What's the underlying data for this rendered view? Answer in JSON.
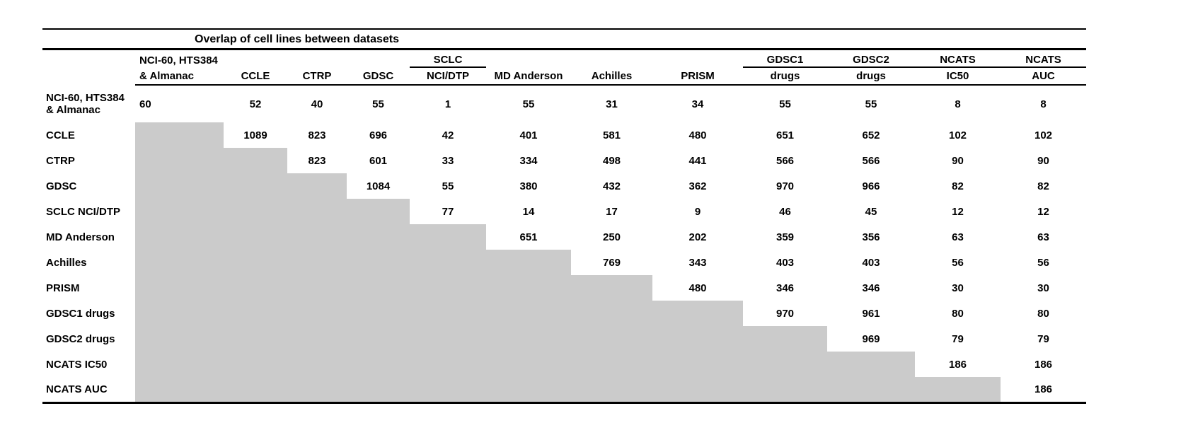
{
  "title": "Overlap of cell lines between datasets",
  "columns": [
    {
      "line1": "NCI-60, HTS384",
      "line2": "& Almanac",
      "underline_line1": false
    },
    {
      "line1": "",
      "line2": "CCLE",
      "underline_line1": false
    },
    {
      "line1": "",
      "line2": "CTRP",
      "underline_line1": false
    },
    {
      "line1": "",
      "line2": "GDSC",
      "underline_line1": false
    },
    {
      "line1": "SCLC",
      "line2": "NCI/DTP",
      "underline_line1": true
    },
    {
      "line1": "",
      "line2": "MD Anderson",
      "underline_line1": false
    },
    {
      "line1": "",
      "line2": "Achilles",
      "underline_line1": false
    },
    {
      "line1": "",
      "line2": "PRISM",
      "underline_line1": false
    },
    {
      "line1": "GDSC1",
      "line2": "drugs",
      "underline_line1": true
    },
    {
      "line1": "GDSC2",
      "line2": "drugs",
      "underline_line1": true
    },
    {
      "line1": "NCATS",
      "line2": "IC50",
      "underline_line1": true
    },
    {
      "line1": "NCATS",
      "line2": "AUC",
      "underline_line1": true
    }
  ],
  "rows": [
    {
      "label_lines": [
        "NCI-60, HTS384",
        "& Almanac"
      ],
      "values": [
        60,
        52,
        40,
        55,
        1,
        55,
        31,
        34,
        55,
        55,
        8,
        8
      ]
    },
    {
      "label_lines": [
        "CCLE"
      ],
      "values": [
        1089,
        823,
        696,
        42,
        401,
        581,
        480,
        651,
        652,
        102,
        102
      ]
    },
    {
      "label_lines": [
        "CTRP"
      ],
      "values": [
        823,
        601,
        33,
        334,
        498,
        441,
        566,
        566,
        90,
        90
      ]
    },
    {
      "label_lines": [
        "GDSC"
      ],
      "values": [
        1084,
        55,
        380,
        432,
        362,
        970,
        966,
        82,
        82
      ]
    },
    {
      "label_lines": [
        "SCLC NCI/DTP"
      ],
      "values": [
        77,
        14,
        17,
        9,
        46,
        45,
        12,
        12
      ]
    },
    {
      "label_lines": [
        "MD Anderson"
      ],
      "values": [
        651,
        250,
        202,
        359,
        356,
        63,
        63
      ]
    },
    {
      "label_lines": [
        "Achilles"
      ],
      "values": [
        769,
        343,
        403,
        403,
        56,
        56
      ]
    },
    {
      "label_lines": [
        "PRISM"
      ],
      "values": [
        480,
        346,
        346,
        30,
        30
      ]
    },
    {
      "label_lines": [
        "GDSC1 drugs"
      ],
      "values": [
        970,
        961,
        80,
        80
      ]
    },
    {
      "label_lines": [
        "GDSC2 drugs"
      ],
      "values": [
        969,
        79,
        79
      ]
    },
    {
      "label_lines": [
        "NCATS IC50"
      ],
      "values": [
        186,
        186
      ]
    },
    {
      "label_lines": [
        "NCATS AUC"
      ],
      "values": [
        186
      ]
    }
  ],
  "colors": {
    "shaded_cell": "#cbcbcb",
    "text": "#000000",
    "rule": "#000000"
  },
  "chart_data": {
    "type": "table",
    "title": "Overlap of cell lines between datasets",
    "datasets": [
      "NCI-60, HTS384 & Almanac",
      "CCLE",
      "CTRP",
      "GDSC",
      "SCLC NCI/DTP",
      "MD Anderson",
      "Achilles",
      "PRISM",
      "GDSC1 drugs",
      "GDSC2 drugs",
      "NCATS IC50",
      "NCATS AUC"
    ],
    "upper_triangle_rows": [
      [
        60,
        52,
        40,
        55,
        1,
        55,
        31,
        34,
        55,
        55,
        8,
        8
      ],
      [
        1089,
        823,
        696,
        42,
        401,
        581,
        480,
        651,
        652,
        102,
        102
      ],
      [
        823,
        601,
        33,
        334,
        498,
        441,
        566,
        566,
        90,
        90
      ],
      [
        1084,
        55,
        380,
        432,
        362,
        970,
        966,
        82,
        82
      ],
      [
        77,
        14,
        17,
        9,
        46,
        45,
        12,
        12
      ],
      [
        651,
        250,
        202,
        359,
        356,
        63,
        63
      ],
      [
        769,
        343,
        403,
        403,
        56,
        56
      ],
      [
        480,
        346,
        346,
        30,
        30
      ],
      [
        970,
        961,
        80,
        80
      ],
      [
        969,
        79,
        79
      ],
      [
        186,
        186
      ],
      [
        186
      ]
    ],
    "layout_note": "Row i values span columns i..12 (diagonal = dataset size); lower triangle is gray-shaded with no values."
  }
}
